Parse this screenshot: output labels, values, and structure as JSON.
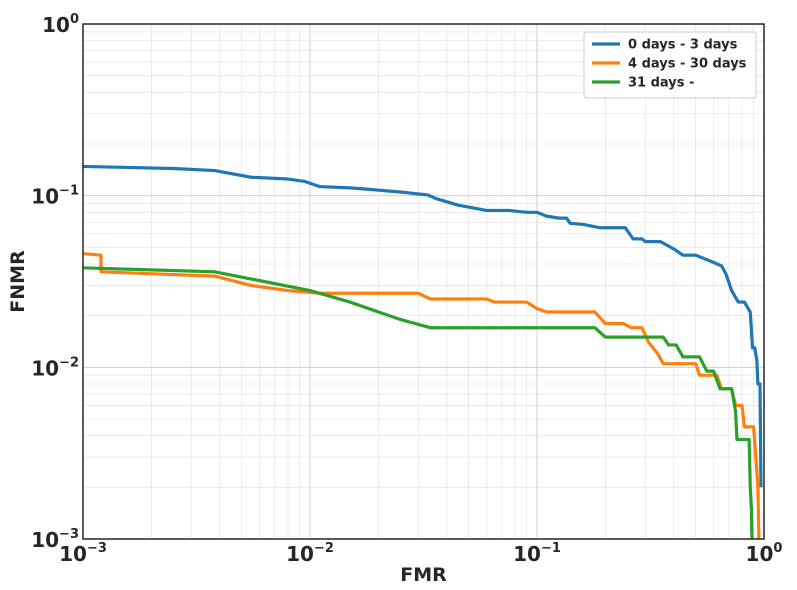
{
  "chart_data": {
    "type": "line",
    "title": "",
    "xlabel": "FMR",
    "ylabel": "FNMR",
    "xscale": "log",
    "yscale": "log",
    "xlim": [
      0.001,
      1
    ],
    "ylim": [
      0.001,
      1
    ],
    "grid": true,
    "legend_position": "top-right",
    "x_ticks": [
      {
        "base": "10",
        "exp": "−3",
        "value": 0.001
      },
      {
        "base": "10",
        "exp": "−2",
        "value": 0.01
      },
      {
        "base": "10",
        "exp": "−1",
        "value": 0.1
      },
      {
        "base": "10",
        "exp": "0",
        "value": 1
      }
    ],
    "y_ticks": [
      {
        "base": "10",
        "exp": "−3",
        "value": 0.001
      },
      {
        "base": "10",
        "exp": "−2",
        "value": 0.01
      },
      {
        "base": "10",
        "exp": "−1",
        "value": 0.1
      },
      {
        "base": "10",
        "exp": "0",
        "value": 1
      }
    ],
    "series": [
      {
        "name": "0 days - 3 days",
        "color": "#1f77b4",
        "points": [
          [
            0.001,
            0.148
          ],
          [
            0.0025,
            0.144
          ],
          [
            0.0038,
            0.14
          ],
          [
            0.0055,
            0.128
          ],
          [
            0.008,
            0.125
          ],
          [
            0.0095,
            0.121
          ],
          [
            0.011,
            0.113
          ],
          [
            0.015,
            0.111
          ],
          [
            0.018,
            0.109
          ],
          [
            0.025,
            0.105
          ],
          [
            0.033,
            0.101
          ],
          [
            0.036,
            0.096
          ],
          [
            0.045,
            0.088
          ],
          [
            0.06,
            0.082
          ],
          [
            0.075,
            0.082
          ],
          [
            0.09,
            0.08
          ],
          [
            0.1,
            0.08
          ],
          [
            0.11,
            0.076
          ],
          [
            0.125,
            0.074
          ],
          [
            0.135,
            0.074
          ],
          [
            0.14,
            0.069
          ],
          [
            0.16,
            0.068
          ],
          [
            0.19,
            0.065
          ],
          [
            0.245,
            0.065
          ],
          [
            0.265,
            0.056
          ],
          [
            0.29,
            0.056
          ],
          [
            0.3,
            0.054
          ],
          [
            0.35,
            0.054
          ],
          [
            0.4,
            0.049
          ],
          [
            0.44,
            0.045
          ],
          [
            0.5,
            0.045
          ],
          [
            0.57,
            0.042
          ],
          [
            0.65,
            0.039
          ],
          [
            0.68,
            0.035
          ],
          [
            0.72,
            0.028
          ],
          [
            0.77,
            0.024
          ],
          [
            0.82,
            0.024
          ],
          [
            0.87,
            0.021
          ],
          [
            0.89,
            0.013
          ],
          [
            0.91,
            0.013
          ],
          [
            0.93,
            0.011
          ],
          [
            0.94,
            0.008
          ],
          [
            0.96,
            0.008
          ],
          [
            0.965,
            0.004
          ],
          [
            0.97,
            0.002
          ]
        ]
      },
      {
        "name": "4 days - 30 days",
        "color": "#ff7f0e",
        "points": [
          [
            0.001,
            0.046
          ],
          [
            0.0012,
            0.045
          ],
          [
            0.0012,
            0.036
          ],
          [
            0.0038,
            0.034
          ],
          [
            0.0055,
            0.03
          ],
          [
            0.008,
            0.028
          ],
          [
            0.011,
            0.027
          ],
          [
            0.03,
            0.027
          ],
          [
            0.034,
            0.025
          ],
          [
            0.06,
            0.025
          ],
          [
            0.065,
            0.024
          ],
          [
            0.08,
            0.024
          ],
          [
            0.09,
            0.024
          ],
          [
            0.1,
            0.022
          ],
          [
            0.11,
            0.021
          ],
          [
            0.18,
            0.021
          ],
          [
            0.2,
            0.018
          ],
          [
            0.24,
            0.018
          ],
          [
            0.26,
            0.017
          ],
          [
            0.29,
            0.017
          ],
          [
            0.31,
            0.014
          ],
          [
            0.34,
            0.012
          ],
          [
            0.36,
            0.0105
          ],
          [
            0.5,
            0.0105
          ],
          [
            0.52,
            0.009
          ],
          [
            0.62,
            0.009
          ],
          [
            0.65,
            0.0075
          ],
          [
            0.72,
            0.0075
          ],
          [
            0.75,
            0.006
          ],
          [
            0.8,
            0.006
          ],
          [
            0.82,
            0.0045
          ],
          [
            0.9,
            0.0045
          ],
          [
            0.92,
            0.003
          ],
          [
            0.94,
            0.002
          ],
          [
            0.95,
            0.001
          ]
        ]
      },
      {
        "name": "31 days -",
        "color": "#2ca02c",
        "points": [
          [
            0.001,
            0.038
          ],
          [
            0.0038,
            0.036
          ],
          [
            0.006,
            0.032
          ],
          [
            0.01,
            0.028
          ],
          [
            0.015,
            0.024
          ],
          [
            0.025,
            0.019
          ],
          [
            0.034,
            0.017
          ],
          [
            0.1,
            0.017
          ],
          [
            0.18,
            0.017
          ],
          [
            0.2,
            0.015
          ],
          [
            0.36,
            0.015
          ],
          [
            0.38,
            0.0135
          ],
          [
            0.41,
            0.0135
          ],
          [
            0.44,
            0.0115
          ],
          [
            0.52,
            0.0115
          ],
          [
            0.56,
            0.0095
          ],
          [
            0.6,
            0.0095
          ],
          [
            0.64,
            0.0075
          ],
          [
            0.72,
            0.0075
          ],
          [
            0.75,
            0.0055
          ],
          [
            0.76,
            0.0038
          ],
          [
            0.86,
            0.0038
          ],
          [
            0.87,
            0.002
          ],
          [
            0.88,
            0.0015
          ],
          [
            0.885,
            0.001
          ]
        ]
      }
    ]
  }
}
